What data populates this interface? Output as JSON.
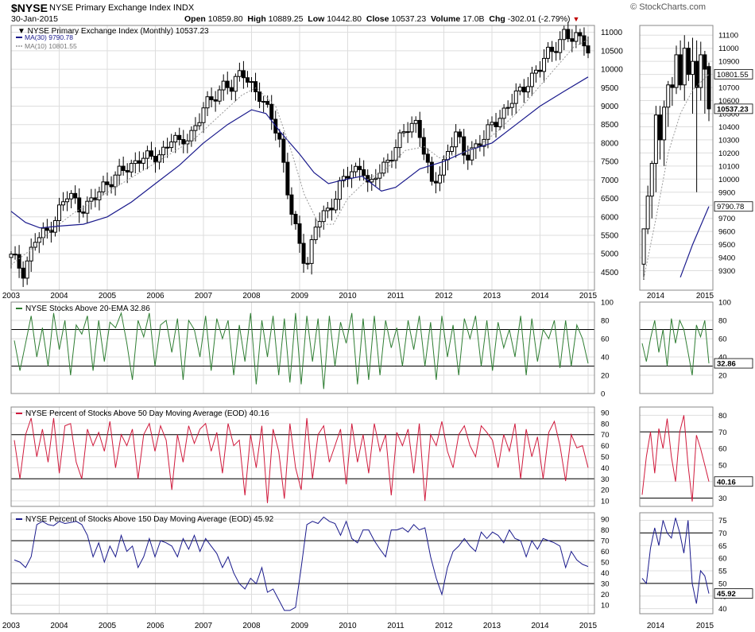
{
  "header": {
    "symbol": "$NYSE",
    "name": "NYSE Primary Exchange Index  INDX",
    "date": "30-Jan-2015",
    "open_label": "Open",
    "open": "10859.80",
    "high_label": "High",
    "high": "10889.25",
    "low_label": "Low",
    "low": "10442.80",
    "close_label": "Close",
    "close": "10537.23",
    "volume_label": "Volume",
    "volume": "17.0B",
    "chg_label": "Chg",
    "chg": "-302.01 (-2.79%)",
    "logo": "© StockCharts.com"
  },
  "colors": {
    "grid": "#dddddd",
    "candle": "#000000",
    "ma30": "#1a1a8c",
    "ma10": "#999999",
    "ema20_line": "#2e7d32",
    "ma50_line": "#d01a3c",
    "ma150_line": "#1a1a8c"
  },
  "chart_data": [
    {
      "type": "candlestick",
      "title": "NYSE Primary Exchange Index (Monthly) 10537.23",
      "legend": [
        {
          "name": "MA(30) 9790.78",
          "color": "#1a1a8c",
          "style": "solid"
        },
        {
          "name": "MA(10) 10801.55",
          "color": "#999999",
          "style": "dotted"
        }
      ],
      "ylim": [
        4100,
        11100
      ],
      "yticks": [
        4500,
        5000,
        5500,
        6000,
        6500,
        7000,
        7500,
        8000,
        8500,
        9000,
        9500,
        10000,
        10500,
        11000
      ],
      "x_labels": [
        "2003",
        "2004",
        "2005",
        "2006",
        "2007",
        "2008",
        "2009",
        "2010",
        "2011",
        "2012",
        "2013",
        "2014",
        "2015"
      ],
      "x_range": [
        2003.0,
        2015.0
      ],
      "close_path": [
        [
          2003.0,
          4900
        ],
        [
          2003.25,
          4550
        ],
        [
          2003.5,
          5350
        ],
        [
          2003.75,
          5600
        ],
        [
          2004.0,
          6200
        ],
        [
          2004.2,
          6600
        ],
        [
          2004.45,
          6250
        ],
        [
          2004.7,
          6400
        ],
        [
          2004.95,
          6900
        ],
        [
          2005.2,
          7150
        ],
        [
          2005.45,
          7300
        ],
        [
          2005.7,
          7700
        ],
        [
          2005.95,
          7500
        ],
        [
          2006.15,
          7800
        ],
        [
          2006.35,
          8200
        ],
        [
          2006.5,
          7900
        ],
        [
          2006.75,
          8300
        ],
        [
          2007.0,
          8900
        ],
        [
          2007.2,
          9200
        ],
        [
          2007.45,
          9700
        ],
        [
          2007.6,
          9400
        ],
        [
          2007.8,
          10000
        ],
        [
          2008.0,
          9600
        ],
        [
          2008.25,
          9000
        ],
        [
          2008.45,
          8700
        ],
        [
          2008.6,
          8000
        ],
        [
          2008.8,
          6200
        ],
        [
          2008.9,
          5700
        ],
        [
          2009.05,
          5100
        ],
        [
          2009.15,
          4700
        ],
        [
          2009.35,
          5800
        ],
        [
          2009.6,
          6200
        ],
        [
          2009.85,
          6900
        ],
        [
          2010.0,
          7100
        ],
        [
          2010.2,
          7300
        ],
        [
          2010.3,
          7500
        ],
        [
          2010.45,
          6700
        ],
        [
          2010.6,
          7100
        ],
        [
          2010.85,
          7600
        ],
        [
          2011.1,
          8100
        ],
        [
          2011.3,
          8500
        ],
        [
          2011.45,
          8600
        ],
        [
          2011.6,
          7700
        ],
        [
          2011.75,
          6800
        ],
        [
          2011.95,
          7300
        ],
        [
          2012.1,
          7900
        ],
        [
          2012.25,
          8200
        ],
        [
          2012.45,
          7600
        ],
        [
          2012.6,
          7900
        ],
        [
          2012.85,
          8100
        ],
        [
          2013.0,
          8500
        ],
        [
          2013.2,
          8800
        ],
        [
          2013.4,
          9100
        ],
        [
          2013.6,
          9400
        ],
        [
          2013.8,
          9800
        ],
        [
          2014.0,
          10000
        ],
        [
          2014.15,
          10400
        ],
        [
          2014.35,
          10700
        ],
        [
          2014.5,
          10950
        ],
        [
          2014.65,
          10750
        ],
        [
          2014.8,
          10900
        ],
        [
          2014.95,
          10840
        ],
        [
          2015.0,
          10537
        ]
      ],
      "ma30_path": [
        [
          2003.0,
          6150
        ],
        [
          2003.3,
          5850
        ],
        [
          2003.6,
          5700
        ],
        [
          2004.0,
          5750
        ],
        [
          2004.5,
          5800
        ],
        [
          2005.0,
          6000
        ],
        [
          2005.5,
          6400
        ],
        [
          2006.0,
          6900
        ],
        [
          2006.5,
          7400
        ],
        [
          2007.0,
          8000
        ],
        [
          2007.5,
          8500
        ],
        [
          2008.0,
          8900
        ],
        [
          2008.3,
          8800
        ],
        [
          2008.6,
          8300
        ],
        [
          2009.0,
          7700
        ],
        [
          2009.3,
          7200
        ],
        [
          2009.6,
          6900
        ],
        [
          2009.9,
          7000
        ],
        [
          2010.3,
          7100
        ],
        [
          2010.7,
          6700
        ],
        [
          2011.0,
          6800
        ],
        [
          2011.5,
          7300
        ],
        [
          2012.0,
          7500
        ],
        [
          2012.5,
          7800
        ],
        [
          2013.0,
          8000
        ],
        [
          2013.5,
          8500
        ],
        [
          2014.0,
          9000
        ],
        [
          2014.5,
          9400
        ],
        [
          2015.0,
          9791
        ]
      ],
      "ma10_path": [
        [
          2003.0,
          4700
        ],
        [
          2003.4,
          5100
        ],
        [
          2003.8,
          5600
        ],
        [
          2004.3,
          6100
        ],
        [
          2004.8,
          6500
        ],
        [
          2005.3,
          6900
        ],
        [
          2005.8,
          7300
        ],
        [
          2006.3,
          7700
        ],
        [
          2006.8,
          8100
        ],
        [
          2007.3,
          8700
        ],
        [
          2007.8,
          9300
        ],
        [
          2008.1,
          9500
        ],
        [
          2008.5,
          9000
        ],
        [
          2008.8,
          7900
        ],
        [
          2009.1,
          6600
        ],
        [
          2009.4,
          5800
        ],
        [
          2009.7,
          5800
        ],
        [
          2010.0,
          6500
        ],
        [
          2010.4,
          7000
        ],
        [
          2010.8,
          7300
        ],
        [
          2011.2,
          7800
        ],
        [
          2011.6,
          7900
        ],
        [
          2011.9,
          7600
        ],
        [
          2012.3,
          7700
        ],
        [
          2012.7,
          7900
        ],
        [
          2013.1,
          8300
        ],
        [
          2013.5,
          8800
        ],
        [
          2013.9,
          9400
        ],
        [
          2014.3,
          10000
        ],
        [
          2014.7,
          10600
        ],
        [
          2015.0,
          10802
        ]
      ],
      "last_close": "10537.23"
    },
    {
      "type": "line",
      "title": "NYSE Stocks Above 20-EMA 32.86",
      "ylim": [
        0,
        100
      ],
      "yticks": [
        0,
        20,
        40,
        60,
        80,
        100
      ],
      "hlines": [
        30,
        70
      ],
      "last_value": "32.86",
      "values": [
        58,
        25,
        55,
        85,
        40,
        72,
        30,
        88,
        48,
        80,
        20,
        75,
        65,
        85,
        25,
        80,
        35,
        78,
        72,
        88,
        55,
        15,
        80,
        62,
        88,
        30,
        75,
        80,
        45,
        82,
        15,
        80,
        70,
        40,
        85,
        25,
        82,
        60,
        80,
        20,
        75,
        35,
        88,
        10,
        80,
        40,
        85,
        20,
        82,
        12,
        88,
        10,
        85,
        35,
        82,
        5,
        85,
        30,
        78,
        55,
        88,
        10,
        82,
        15,
        85,
        20,
        80,
        50,
        72,
        30,
        80,
        48,
        85,
        30,
        78,
        15,
        85,
        40,
        75,
        20,
        82,
        60,
        85,
        30,
        80,
        25,
        78,
        50,
        70,
        40,
        85,
        20,
        82,
        35,
        70,
        60,
        80,
        28,
        80,
        30,
        75,
        60,
        33
      ]
    },
    {
      "type": "line",
      "title": "NYSE Percent of Stocks Above 50 Day Moving Average (EOD) 40.16",
      "ylim": [
        5,
        95
      ],
      "yticks": [
        10,
        20,
        30,
        40,
        50,
        60,
        70,
        80,
        90
      ],
      "hlines": [
        30,
        70
      ],
      "last_value": "40.16",
      "values": [
        65,
        30,
        70,
        85,
        50,
        75,
        45,
        85,
        35,
        78,
        80,
        45,
        30,
        75,
        60,
        72,
        55,
        82,
        40,
        70,
        60,
        75,
        30,
        70,
        80,
        55,
        78,
        65,
        20,
        70,
        45,
        78,
        62,
        75,
        80,
        55,
        72,
        35,
        80,
        60,
        65,
        15,
        70,
        40,
        78,
        8,
        75,
        55,
        12,
        80,
        40,
        20,
        85,
        30,
        70,
        78,
        45,
        60,
        75,
        25,
        80,
        45,
        70,
        35,
        80,
        55,
        70,
        15,
        72,
        60,
        75,
        35,
        80,
        10,
        70,
        60,
        82,
        55,
        40,
        70,
        78,
        60,
        50,
        78,
        72,
        65,
        40,
        70,
        55,
        80,
        30,
        75,
        50,
        68,
        30,
        72,
        82,
        60,
        28,
        70,
        58,
        60,
        40
      ]
    },
    {
      "type": "line",
      "title": "NYSE Percent of Stocks Above 150 Day Moving Average (EOD) 45.92",
      "ylim": [
        2,
        96
      ],
      "yticks": [
        10,
        20,
        30,
        40,
        50,
        60,
        70,
        80,
        90
      ],
      "hlines": [
        30,
        70
      ],
      "last_value": "45.92",
      "values": [
        52,
        50,
        45,
        55,
        85,
        88,
        85,
        84,
        88,
        86,
        87,
        88,
        85,
        75,
        55,
        68,
        50,
        65,
        55,
        75,
        60,
        65,
        45,
        55,
        72,
        55,
        70,
        68,
        65,
        55,
        72,
        62,
        75,
        60,
        72,
        65,
        58,
        45,
        55,
        40,
        30,
        25,
        35,
        30,
        45,
        22,
        25,
        15,
        5,
        5,
        8,
        45,
        85,
        88,
        86,
        92,
        88,
        86,
        75,
        88,
        72,
        68,
        80,
        80,
        70,
        62,
        55,
        80,
        80,
        82,
        78,
        85,
        80,
        82,
        55,
        35,
        20,
        45,
        60,
        65,
        72,
        65,
        60,
        78,
        72,
        78,
        75,
        68,
        80,
        72,
        70,
        55,
        70,
        62,
        72,
        70,
        68,
        65,
        45,
        60,
        52,
        48,
        46
      ]
    },
    {
      "type": "candlestick",
      "title": "",
      "x_labels": [
        "2014",
        "2015"
      ],
      "ylim": [
        9200,
        11150
      ],
      "yticks": [
        9300,
        9400,
        9500,
        9600,
        9700,
        9800,
        9900,
        10000,
        10100,
        10200,
        10300,
        10400,
        10500,
        10600,
        10700,
        10800,
        10900,
        11000,
        11100
      ],
      "candles": [
        {
          "o": 9350,
          "h": 9620,
          "l": 9230,
          "c": 9620
        },
        {
          "o": 9620,
          "h": 9950,
          "l": 9580,
          "c": 9870
        },
        {
          "o": 9870,
          "h": 10140,
          "l": 9700,
          "c": 10120
        },
        {
          "o": 10120,
          "h": 10560,
          "l": 9900,
          "c": 10490
        },
        {
          "o": 10490,
          "h": 10560,
          "l": 10150,
          "c": 10300
        },
        {
          "o": 10300,
          "h": 10600,
          "l": 10100,
          "c": 10550
        },
        {
          "o": 10550,
          "h": 10750,
          "l": 10400,
          "c": 10720
        },
        {
          "o": 10720,
          "h": 10780,
          "l": 10560,
          "c": 10700
        },
        {
          "o": 10700,
          "h": 11020,
          "l": 10650,
          "c": 10950
        },
        {
          "o": 10950,
          "h": 11060,
          "l": 10680,
          "c": 10720
        },
        {
          "o": 10720,
          "h": 11100,
          "l": 10600,
          "c": 11000
        },
        {
          "o": 11000,
          "h": 11050,
          "l": 10750,
          "c": 10800
        },
        {
          "o": 10800,
          "h": 11080,
          "l": 10500,
          "c": 10900
        },
        {
          "o": 10900,
          "h": 11060,
          "l": 9900,
          "c": 10700
        },
        {
          "o": 10700,
          "h": 11050,
          "l": 10600,
          "c": 10950
        },
        {
          "o": 10950,
          "h": 10980,
          "l": 10500,
          "c": 10840
        },
        {
          "o": 10860,
          "h": 10890,
          "l": 10443,
          "c": 10537
        }
      ],
      "ma10_path": [
        [
          0,
          9240
        ],
        [
          3,
          9700
        ],
        [
          6,
          10200
        ],
        [
          9,
          10500
        ],
        [
          12,
          10680
        ],
        [
          16,
          10802
        ]
      ],
      "ma30_path": [
        [
          9,
          9250
        ],
        [
          12,
          9500
        ],
        [
          16,
          9791
        ]
      ],
      "tag_values": {
        "ma10": "10801.55",
        "close": "10537.23",
        "ma30": "9790.78"
      }
    },
    {
      "type": "line",
      "ylim": [
        0,
        100
      ],
      "yticks": [
        20,
        40,
        60,
        80,
        100
      ],
      "hlines": [
        30,
        70
      ],
      "last_value": "32.86",
      "values": [
        55,
        35,
        60,
        80,
        45,
        70,
        30,
        82,
        55,
        80,
        70,
        45,
        20,
        75,
        62,
        80,
        33
      ]
    },
    {
      "type": "line",
      "ylim": [
        25,
        85
      ],
      "yticks": [
        30,
        40,
        50,
        60,
        70,
        80
      ],
      "hlines": [
        30,
        70
      ],
      "last_value": "40.16",
      "values": [
        32,
        55,
        70,
        45,
        72,
        60,
        78,
        55,
        40,
        70,
        80,
        50,
        28,
        68,
        60,
        50,
        40
      ]
    },
    {
      "type": "line",
      "ylim": [
        38,
        78
      ],
      "yticks": [
        40,
        45,
        50,
        55,
        60,
        65,
        70,
        75
      ],
      "hlines": [
        50,
        70
      ],
      "last_value": "45.92",
      "values": [
        52,
        50,
        64,
        72,
        65,
        75,
        70,
        68,
        76,
        70,
        62,
        75,
        50,
        42,
        55,
        53,
        46
      ]
    }
  ]
}
